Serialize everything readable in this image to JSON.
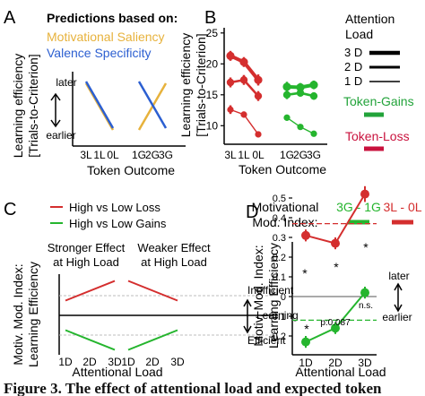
{
  "colors": {
    "red": "#d42e2e",
    "green": "#25b52e",
    "orange": "#e7b23c",
    "blue": "#2c5fd1",
    "token_gains": "#22a33a",
    "token_loss": "#c9123d",
    "dash_gray": "#bdbdbd"
  },
  "panel_a": {
    "letter": "A",
    "legend_title": "Predictions based on:",
    "legend_items": [
      "Motivational Saliency",
      "Valence Specificity"
    ],
    "ylabel_line1": "Learning efficiency",
    "ylabel_line2": "[Trials-to-Criterion]",
    "later": "later",
    "earlier": "earlier",
    "ticks": [
      "3L",
      "1L",
      "0L",
      "1G",
      "2G",
      "3G"
    ],
    "xlabel": "Token Outcome"
  },
  "panel_b": {
    "letter": "B",
    "ylabel_line1": "Learning efficiency",
    "ylabel_line2": "[Trials-to-Criterion]",
    "xlabel": "Token Outcome",
    "attention_title_1": "Attention",
    "attention_title_2": "Load",
    "load_labels": [
      "3 D",
      "2 D",
      "1 D"
    ],
    "token_gains": "Token-Gains",
    "token_loss": "Token-Loss"
  },
  "panel_c": {
    "letter": "C",
    "legend": [
      "High vs Low Loss",
      "High vs Low Gains"
    ],
    "stronger_1": "Stronger Effect",
    "stronger_2": "at High Load",
    "weaker_1": "Weaker Effect",
    "weaker_2": "at High Load",
    "ylabel_line1": "Motiv. Mod. Index:",
    "ylabel_line2": "Learning Efficiency",
    "inefficient": "Inefficient",
    "learning": "Learning",
    "efficient": "Efficient",
    "ticks": [
      "1D",
      "2D",
      "3D"
    ],
    "xlabel": "Attentional Load"
  },
  "panel_d": {
    "letter": "D",
    "legend_title_1": "Motivational",
    "legend_title_2": "Mod. Index:",
    "legend_items": [
      "3G - 1G",
      "3L - 0L"
    ],
    "ylabel_line1": "Motiv. Mod. Index:",
    "ylabel_line2": "Learning Efficiency",
    "later": "later",
    "earlier": "earlier",
    "annot_star": "*",
    "annot_p": "p:0.087",
    "annot_ns": "n.s.",
    "xlabel": "Attentional Load"
  },
  "caption": "Figure 3. The effect of attentional load and expected token",
  "chart_data": [
    {
      "type": "line",
      "panel": "A",
      "categories": [
        "3L",
        "1L",
        "0L",
        "1G",
        "2G",
        "3G"
      ],
      "series": [
        {
          "name": "Motivational Saliency",
          "segments": [
            {
              "x": [
                "3L",
                "0L"
              ],
              "y": [
                1,
                0
              ]
            },
            {
              "x": [
                "1G",
                "3G"
              ],
              "y": [
                0,
                1
              ]
            }
          ]
        },
        {
          "name": "Valence Specificity",
          "segments": [
            {
              "x": [
                "3L",
                "0L"
              ],
              "y": [
                1,
                0
              ]
            },
            {
              "x": [
                "1G",
                "3G"
              ],
              "y": [
                1,
                0
              ]
            }
          ]
        }
      ]
    },
    {
      "type": "line",
      "panel": "B",
      "categories": [
        "3L",
        "1L",
        "0L",
        "1G",
        "2G",
        "3G"
      ],
      "yticks": [
        10,
        15,
        20,
        25
      ],
      "ylim": [
        7,
        26
      ],
      "series": [
        {
          "name": "Token-Loss 3 D",
          "x": [
            "3L",
            "1L",
            "0L"
          ],
          "y": [
            21.3,
            20.3,
            17.4
          ],
          "err": [
            0.8,
            0.8,
            0.9
          ]
        },
        {
          "name": "Token-Loss 2 D",
          "x": [
            "3L",
            "1L",
            "0L"
          ],
          "y": [
            17.0,
            17.4,
            14.8
          ],
          "err": [
            0.8,
            0.8,
            0.8
          ]
        },
        {
          "name": "Token-Loss 1 D",
          "x": [
            "3L",
            "1L",
            "0L"
          ],
          "y": [
            12.6,
            11.8,
            8.6
          ],
          "err": [
            0.7,
            0.5,
            0.5
          ]
        },
        {
          "name": "Token-Gains 3 D",
          "x": [
            "1G",
            "2G",
            "3G"
          ],
          "y": [
            16.3,
            16.2,
            16.6
          ],
          "err": [
            0.8,
            0.7,
            0.7
          ]
        },
        {
          "name": "Token-Gains 2 D",
          "x": [
            "1G",
            "2G",
            "3G"
          ],
          "y": [
            15.0,
            15.3,
            14.8
          ],
          "err": [
            0.7,
            0.6,
            0.6
          ]
        },
        {
          "name": "Token-Gains 1 D",
          "x": [
            "1G",
            "2G",
            "3G"
          ],
          "y": [
            11.3,
            9.8,
            8.7
          ],
          "err": [
            0.5,
            0.4,
            0.4
          ]
        }
      ]
    },
    {
      "type": "line",
      "panel": "C",
      "categories": [
        "1D",
        "2D",
        "3D"
      ],
      "series": [
        {
          "name": "High vs Low Loss",
          "subpanels": [
            {
              "y": [
                0.15,
                0.35
              ]
            },
            {
              "y": [
                0.35,
                0.15
              ]
            }
          ]
        },
        {
          "name": "High vs Low Gains",
          "subpanels": [
            {
              "y": [
                -0.15,
                -0.35
              ]
            },
            {
              "y": [
                -0.35,
                -0.15
              ]
            }
          ]
        }
      ]
    },
    {
      "type": "line",
      "panel": "D",
      "categories": [
        "1D",
        "2D",
        "3D"
      ],
      "yticks": [
        -0.2,
        -0.1,
        0,
        0.1,
        0.2,
        0.3,
        0.4,
        0.5
      ],
      "ylim": [
        -0.3,
        0.6
      ],
      "series": [
        {
          "name": "3L - 0L",
          "y": [
            0.31,
            0.27,
            0.52
          ],
          "err": [
            0.03,
            0.03,
            0.04
          ],
          "mean_line": 0.37
        },
        {
          "name": "3G - 1G",
          "y": [
            -0.23,
            -0.16,
            0.02
          ],
          "err": [
            0.03,
            0.03,
            0.03
          ],
          "mean_line": -0.12
        }
      ]
    }
  ]
}
